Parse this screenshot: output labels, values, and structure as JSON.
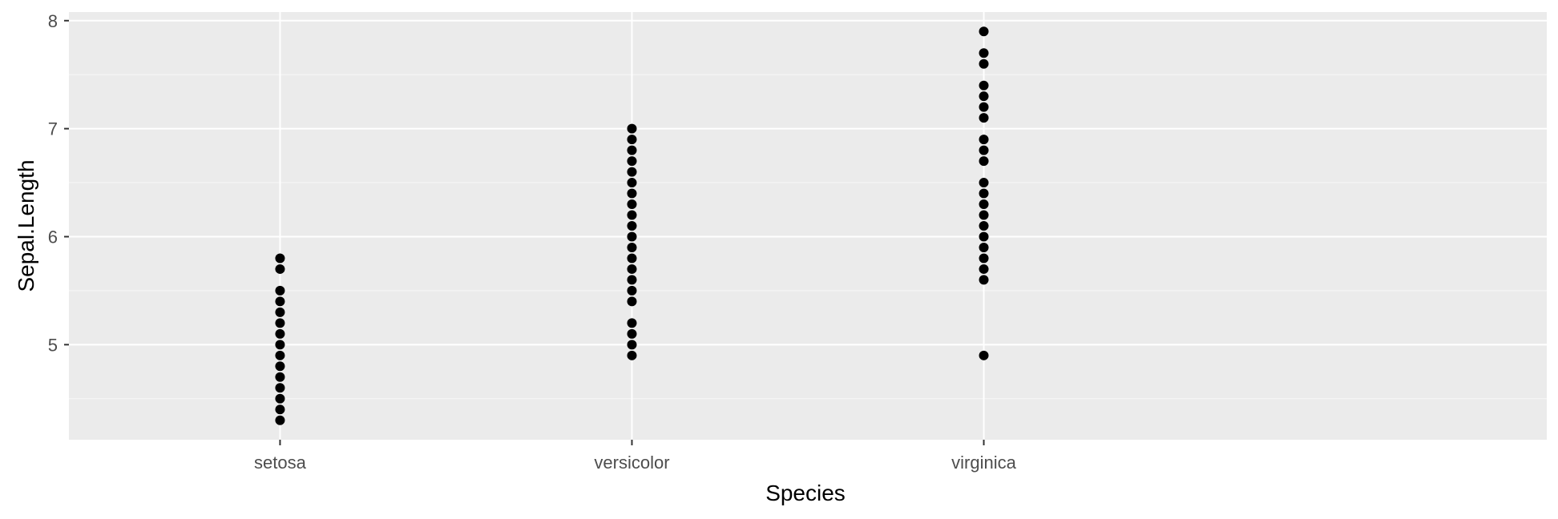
{
  "chart_data": {
    "type": "scatter",
    "title": "",
    "xlabel": "Species",
    "ylabel": "Sepal.Length",
    "categories": [
      "setosa",
      "versicolor",
      "virginica"
    ],
    "ylim": [
      4.12,
      8.08
    ],
    "yticks": [
      5,
      6,
      7,
      8
    ],
    "ytick_labels": [
      "5",
      "6",
      "7",
      "8"
    ],
    "grid": true,
    "legend": "none",
    "colors": {
      "panel_background": "#ebebeb",
      "grid_major": "#ffffff",
      "grid_minor": "#f7f7f7",
      "point": "#000000",
      "tick_text": "#4d4d4d",
      "axis_title": "#000000"
    },
    "series": [
      {
        "category": "setosa",
        "values": [
          4.3,
          4.4,
          4.5,
          4.6,
          4.7,
          4.8,
          4.9,
          5.0,
          5.1,
          5.2,
          5.3,
          5.4,
          5.5,
          5.7,
          5.8
        ]
      },
      {
        "category": "versicolor",
        "values": [
          4.9,
          5.0,
          5.1,
          5.2,
          5.4,
          5.5,
          5.6,
          5.7,
          5.8,
          5.9,
          6.0,
          6.1,
          6.2,
          6.3,
          6.4,
          6.5,
          6.6,
          6.7,
          6.8,
          6.9,
          7.0
        ]
      },
      {
        "category": "virginica",
        "values": [
          4.9,
          5.6,
          5.7,
          5.8,
          5.9,
          6.0,
          6.1,
          6.2,
          6.3,
          6.4,
          6.5,
          6.7,
          6.8,
          6.9,
          7.1,
          7.2,
          7.3,
          7.4,
          7.6,
          7.7,
          7.9
        ]
      }
    ]
  }
}
